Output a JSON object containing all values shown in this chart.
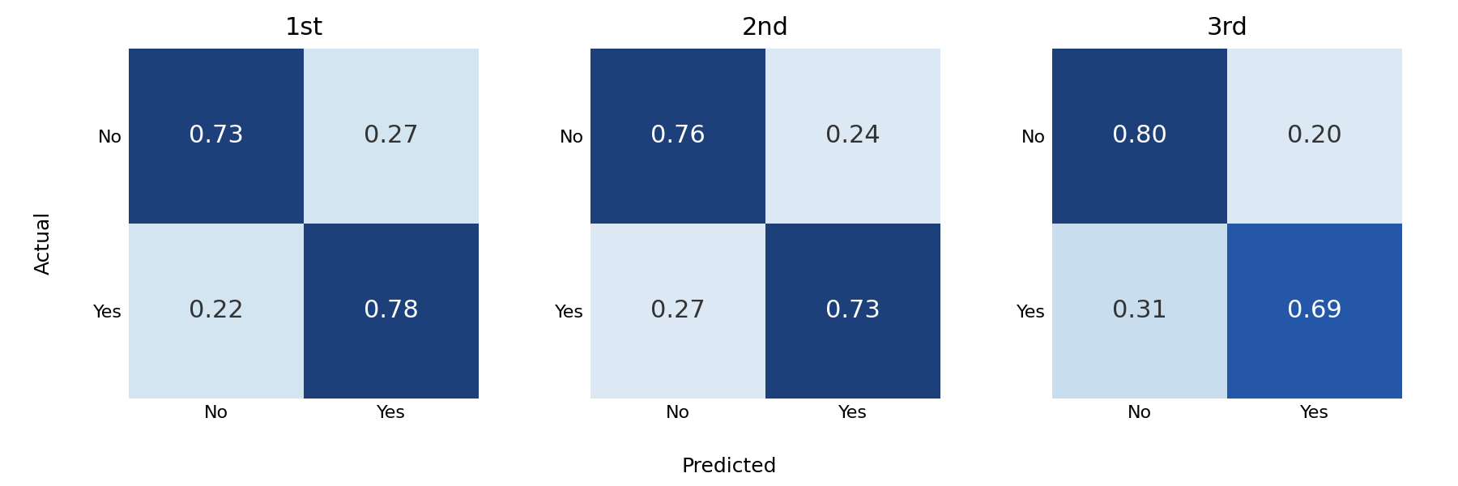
{
  "matrices": [
    {
      "title": "1st",
      "values": [
        [
          0.73,
          0.27
        ],
        [
          0.22,
          0.78
        ]
      ],
      "colors": [
        [
          "#1d3f7a",
          "#d4e5f2"
        ],
        [
          "#d4e5f2",
          "#1d3f7a"
        ]
      ]
    },
    {
      "title": "2nd",
      "values": [
        [
          0.76,
          0.24
        ],
        [
          0.27,
          0.73
        ]
      ],
      "colors": [
        [
          "#1d3f7a",
          "#dce9f5"
        ],
        [
          "#dce9f5",
          "#1d3f7a"
        ]
      ]
    },
    {
      "title": "3rd",
      "values": [
        [
          0.8,
          0.2
        ],
        [
          0.31,
          0.69
        ]
      ],
      "colors": [
        [
          "#1d3f7a",
          "#dce9f5"
        ],
        [
          "#c8dded",
          "#2457a8"
        ]
      ]
    }
  ],
  "row_labels": [
    "No",
    "Yes"
  ],
  "col_labels": [
    "No",
    "Yes"
  ],
  "xlabel": "Predicted",
  "ylabel": "Actual",
  "title_fontsize": 22,
  "label_fontsize": 18,
  "tick_fontsize": 16,
  "value_fontsize": 22,
  "dark_text_color": "#ffffff",
  "light_text_color": "#333333",
  "dark_threshold": 0.5,
  "background_color": "#ffffff"
}
